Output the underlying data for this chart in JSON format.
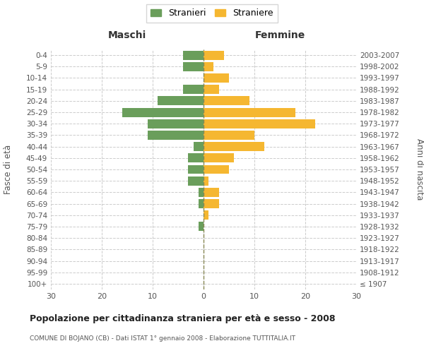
{
  "age_groups": [
    "100+",
    "95-99",
    "90-94",
    "85-89",
    "80-84",
    "75-79",
    "70-74",
    "65-69",
    "60-64",
    "55-59",
    "50-54",
    "45-49",
    "40-44",
    "35-39",
    "30-34",
    "25-29",
    "20-24",
    "15-19",
    "10-14",
    "5-9",
    "0-4"
  ],
  "birth_years": [
    "≤ 1907",
    "1908-1912",
    "1913-1917",
    "1918-1922",
    "1923-1927",
    "1928-1932",
    "1933-1937",
    "1938-1942",
    "1943-1947",
    "1948-1952",
    "1953-1957",
    "1958-1962",
    "1963-1967",
    "1968-1972",
    "1973-1977",
    "1978-1982",
    "1983-1987",
    "1988-1992",
    "1993-1997",
    "1998-2002",
    "2003-2007"
  ],
  "males": [
    0,
    0,
    0,
    0,
    0,
    1,
    0,
    1,
    1,
    3,
    3,
    3,
    2,
    11,
    11,
    16,
    9,
    4,
    0,
    4,
    4
  ],
  "females": [
    0,
    0,
    0,
    0,
    0,
    0,
    1,
    3,
    3,
    1,
    5,
    6,
    12,
    10,
    22,
    18,
    9,
    3,
    5,
    2,
    4
  ],
  "male_color": "#6a9e5b",
  "female_color": "#f5b731",
  "background_color": "#ffffff",
  "grid_color": "#cccccc",
  "center_line_color": "#888855",
  "title": "Popolazione per cittadinanza straniera per età e sesso - 2008",
  "subtitle": "COMUNE DI BOJANO (CB) - Dati ISTAT 1° gennaio 2008 - Elaborazione TUTTITALIA.IT",
  "xlabel_left": "Maschi",
  "xlabel_right": "Femmine",
  "ylabel_left": "Fasce di età",
  "ylabel_right": "Anni di nascita",
  "legend_stranieri": "Stranieri",
  "legend_straniere": "Straniere",
  "xlim": 30,
  "bar_height": 0.8
}
